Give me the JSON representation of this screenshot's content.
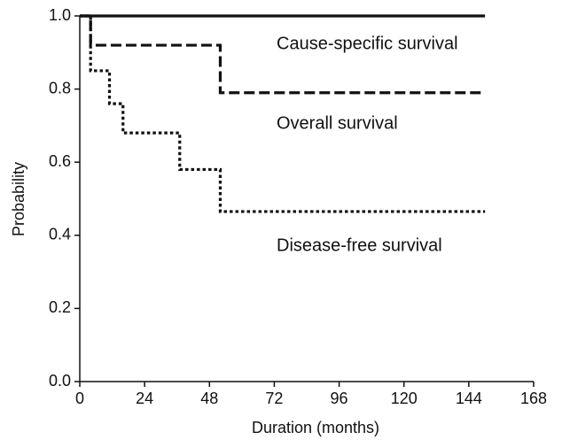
{
  "chart_data": {
    "type": "step",
    "xlabel": "Duration (months)",
    "ylabel": "Probability",
    "xlim": [
      0,
      168
    ],
    "xticks": [
      0,
      24,
      48,
      72,
      96,
      120,
      144,
      168
    ],
    "ylim": [
      0,
      1
    ],
    "yticks": [
      {
        "value": 0,
        "label": "0.0"
      },
      {
        "value": 0.2,
        "label": "0.2"
      },
      {
        "value": 0.4,
        "label": "0.4"
      },
      {
        "value": 0.6,
        "label": "0.6"
      },
      {
        "value": 0.8,
        "label": "0.8"
      },
      {
        "value": 1,
        "label": "1.0"
      }
    ],
    "grid": false,
    "series": [
      {
        "name": "Cause-specific survival",
        "color": "#111111",
        "line_style": "solid",
        "x": [
          0,
          150
        ],
        "values": [
          1,
          1
        ]
      },
      {
        "name": "Overall survival",
        "color": "#111111",
        "line_style": "dashed",
        "x": [
          0,
          4,
          4,
          52,
          52,
          150
        ],
        "values": [
          1,
          1,
          0.92,
          0.92,
          0.79,
          0.79
        ]
      },
      {
        "name": "Disease-free survival",
        "color": "#111111",
        "line_style": "dotted",
        "x": [
          0,
          4,
          4,
          11,
          11,
          16,
          16,
          37,
          37,
          52,
          52,
          150
        ],
        "values": [
          1,
          1,
          0.85,
          0.85,
          0.76,
          0.76,
          0.68,
          0.68,
          0.58,
          0.58,
          0.465,
          0.465
        ]
      }
    ]
  }
}
